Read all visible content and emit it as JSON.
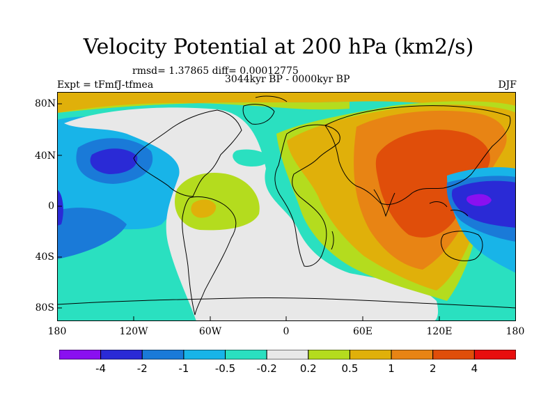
{
  "title": "Velocity Potential at 200 hPa (km2/s)",
  "stats": "rmsd= 1.37865 diff= 0.00012775",
  "period": "3044kyr BP - 0000kyr BP",
  "experiment": "Expt = tFmfJ-tfmea",
  "season": "DJF",
  "lat_labels": [
    "80N",
    "40N",
    "0",
    "40S",
    "80S"
  ],
  "lon_labels": [
    "180",
    "120W",
    "60W",
    "0",
    "60E",
    "120E",
    "180"
  ],
  "colorbar": {
    "colors": [
      "#8a10f0",
      "#2a2ad6",
      "#1a7ad8",
      "#18b4e8",
      "#2ae0c0",
      "#e8e8e8",
      "#b4dc1e",
      "#e0b00a",
      "#e88414",
      "#e04e0a",
      "#e80e0e"
    ],
    "labels": [
      "-4",
      "-2",
      "-1",
      "-0.5",
      "-0.2",
      "0.2",
      "0.5",
      "1",
      "2",
      "4"
    ]
  }
}
